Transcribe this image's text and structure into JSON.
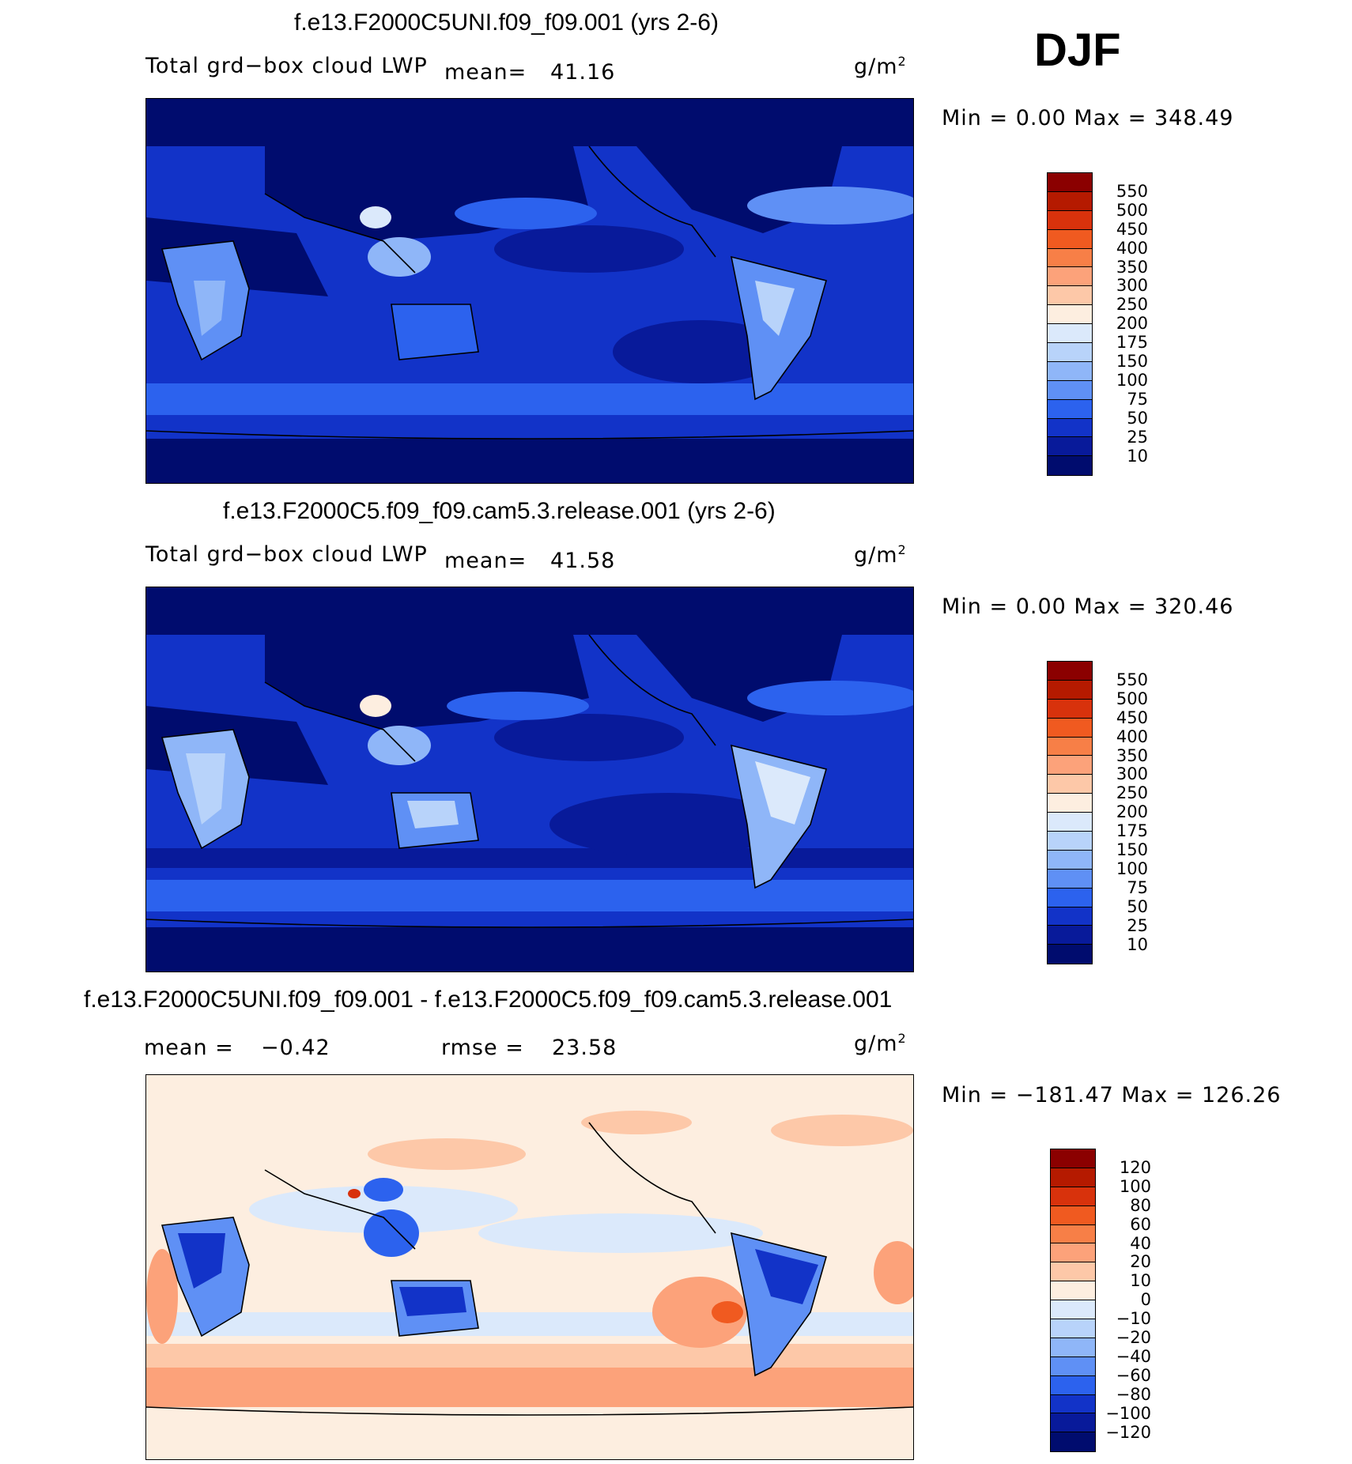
{
  "season": "DJF",
  "units": "g/m",
  "units_exp": "2",
  "panels": [
    {
      "title": "f.e13.F2000C5UNI.f09_f09.001 (yrs 2-6)",
      "variable": "Total grd−box cloud LWP",
      "mean_label": "mean=",
      "mean_value": "41.16",
      "minmax": "Min =     0.00  Max  =  348.49",
      "levels": [
        "550",
        "500",
        "450",
        "400",
        "350",
        "300",
        "250",
        "200",
        "175",
        "150",
        "100",
        "75",
        "50",
        "25",
        "10"
      ],
      "colors": [
        "#8b0000",
        "#b51a00",
        "#d8320c",
        "#f05a20",
        "#f77f47",
        "#fca27a",
        "#fdc8a8",
        "#fdeee0",
        "#dbe9fb",
        "#b8d3fa",
        "#8fb6f8",
        "#5f90f5",
        "#2c62ee",
        "#1233c8",
        "#081a9a",
        "#000c6e"
      ]
    },
    {
      "title": "f.e13.F2000C5.f09_f09.cam5.3.release.001 (yrs 2-6)",
      "variable": "Total grd−box cloud LWP",
      "mean_label": "mean=",
      "mean_value": "41.58",
      "minmax": "Min =     0.00  Max  =  320.46",
      "levels": [
        "550",
        "500",
        "450",
        "400",
        "350",
        "300",
        "250",
        "200",
        "175",
        "150",
        "100",
        "75",
        "50",
        "25",
        "10"
      ],
      "colors": [
        "#8b0000",
        "#b51a00",
        "#d8320c",
        "#f05a20",
        "#f77f47",
        "#fca27a",
        "#fdc8a8",
        "#fdeee0",
        "#dbe9fb",
        "#b8d3fa",
        "#8fb6f8",
        "#5f90f5",
        "#2c62ee",
        "#1233c8",
        "#081a9a",
        "#000c6e"
      ]
    },
    {
      "title": "f.e13.F2000C5UNI.f09_f09.001 - f.e13.F2000C5.f09_f09.cam5.3.release.001",
      "mean_label": "mean  =",
      "mean_value": "−0.42",
      "rmse_label": "rmse  =",
      "rmse_value": "23.58",
      "minmax": "Min  =  −181.47  Max  =  126.26",
      "levels": [
        "120",
        "100",
        "80",
        "60",
        "40",
        "20",
        "10",
        "0",
        "−10",
        "−20",
        "−40",
        "−60",
        "−80",
        "−100",
        "−120"
      ],
      "colors": [
        "#8b0000",
        "#b51a00",
        "#d8320c",
        "#f05a20",
        "#f77f47",
        "#fca27a",
        "#fdc8a8",
        "#fdeee0",
        "#dbe9fb",
        "#b8d3fa",
        "#8fb6f8",
        "#5f90f5",
        "#2c62ee",
        "#1233c8",
        "#081a9a",
        "#000c6e"
      ]
    }
  ]
}
